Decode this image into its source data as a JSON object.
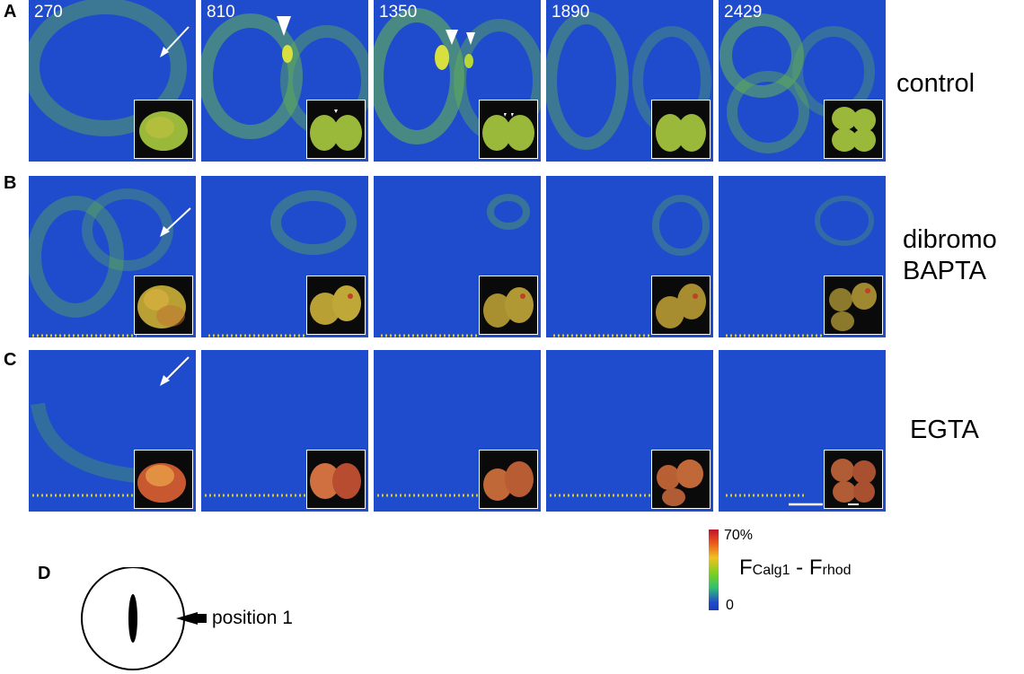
{
  "panels": {
    "A": {
      "letter": "A",
      "label": "control",
      "times": [
        "270",
        "810",
        "1350",
        "1890",
        "2429"
      ]
    },
    "B": {
      "letter": "B",
      "label_line1": "dibromo",
      "label_line2": "BAPTA"
    },
    "C": {
      "letter": "C",
      "label": "EGTA"
    },
    "D": {
      "letter": "D",
      "position_label": "position 1"
    }
  },
  "colorbar": {
    "max_label": "70%",
    "min_label": "0",
    "formula_main1": "F",
    "formula_sub1": "Calg1",
    "formula_mid": " - F",
    "formula_sub2": "rhod"
  },
  "colors": {
    "background_blue": "#1f4ccc",
    "signal_green": "#7ed23c",
    "signal_yellow": "#e0e030",
    "inset_bg": "#0a0a0a"
  }
}
